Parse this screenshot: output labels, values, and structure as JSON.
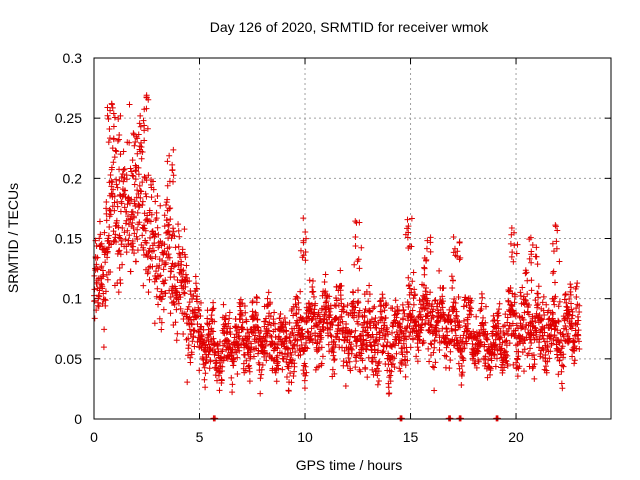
{
  "chart_data": {
    "type": "scatter",
    "title": "Day 126 of 2020, SRMTID for receiver wmok",
    "xlabel": "GPS time / hours",
    "ylabel": "SRMTID / TECUs",
    "xlim": [
      0,
      24.5
    ],
    "ylim": [
      0,
      0.3
    ],
    "xticks": [
      0,
      5,
      10,
      15,
      20
    ],
    "xtick_labels": [
      "0",
      "5",
      "10",
      "15",
      "20"
    ],
    "yticks": [
      0,
      0.05,
      0.1,
      0.15,
      0.2,
      0.25,
      0.3
    ],
    "ytick_labels": [
      "0",
      "0.05",
      "0.1",
      "0.15",
      "0.2",
      "0.25",
      "0.3"
    ],
    "grid": true,
    "marker": "+",
    "color": "#e00000",
    "series": [
      {
        "name": "SRMTID",
        "x_range": [
          0,
          23.0
        ],
        "n_points": 2600,
        "profile": [
          {
            "x": 0.0,
            "mean": 0.1,
            "spread": 0.03
          },
          {
            "x": 0.5,
            "mean": 0.14,
            "spread": 0.04
          },
          {
            "x": 1.0,
            "mean": 0.18,
            "spread": 0.045
          },
          {
            "x": 1.5,
            "mean": 0.17,
            "spread": 0.045
          },
          {
            "x": 2.0,
            "mean": 0.18,
            "spread": 0.05
          },
          {
            "x": 2.5,
            "mean": 0.17,
            "spread": 0.05
          },
          {
            "x": 3.0,
            "mean": 0.13,
            "spread": 0.04
          },
          {
            "x": 3.5,
            "mean": 0.13,
            "spread": 0.04
          },
          {
            "x": 4.0,
            "mean": 0.12,
            "spread": 0.035
          },
          {
            "x": 4.5,
            "mean": 0.09,
            "spread": 0.03
          },
          {
            "x": 5.0,
            "mean": 0.07,
            "spread": 0.02
          },
          {
            "x": 6.0,
            "mean": 0.055,
            "spread": 0.018
          },
          {
            "x": 7.0,
            "mean": 0.065,
            "spread": 0.02
          },
          {
            "x": 8.0,
            "mean": 0.07,
            "spread": 0.022
          },
          {
            "x": 9.0,
            "mean": 0.06,
            "spread": 0.02
          },
          {
            "x": 10.0,
            "mean": 0.075,
            "spread": 0.025
          },
          {
            "x": 11.0,
            "mean": 0.08,
            "spread": 0.022
          },
          {
            "x": 12.0,
            "mean": 0.075,
            "spread": 0.025
          },
          {
            "x": 13.0,
            "mean": 0.07,
            "spread": 0.025
          },
          {
            "x": 14.0,
            "mean": 0.065,
            "spread": 0.022
          },
          {
            "x": 15.0,
            "mean": 0.08,
            "spread": 0.025
          },
          {
            "x": 16.0,
            "mean": 0.08,
            "spread": 0.025
          },
          {
            "x": 17.0,
            "mean": 0.075,
            "spread": 0.022
          },
          {
            "x": 18.0,
            "mean": 0.07,
            "spread": 0.02
          },
          {
            "x": 19.0,
            "mean": 0.06,
            "spread": 0.018
          },
          {
            "x": 20.0,
            "mean": 0.08,
            "spread": 0.028
          },
          {
            "x": 21.0,
            "mean": 0.075,
            "spread": 0.025
          },
          {
            "x": 22.0,
            "mean": 0.07,
            "spread": 0.022
          },
          {
            "x": 23.0,
            "mean": 0.085,
            "spread": 0.025
          }
        ],
        "peaks": [
          {
            "x": 0.8,
            "y": 0.275
          },
          {
            "x": 1.1,
            "y": 0.255
          },
          {
            "x": 2.0,
            "y": 0.245
          },
          {
            "x": 2.5,
            "y": 0.277
          },
          {
            "x": 3.6,
            "y": 0.228
          },
          {
            "x": 9.9,
            "y": 0.168
          },
          {
            "x": 12.5,
            "y": 0.165
          },
          {
            "x": 14.9,
            "y": 0.17
          },
          {
            "x": 15.8,
            "y": 0.156
          },
          {
            "x": 17.2,
            "y": 0.155
          },
          {
            "x": 19.9,
            "y": 0.167
          },
          {
            "x": 20.8,
            "y": 0.164
          },
          {
            "x": 21.9,
            "y": 0.162
          }
        ]
      }
    ],
    "zero_markers_x": [
      5.7,
      14.55,
      16.85,
      17.35,
      19.1
    ]
  }
}
